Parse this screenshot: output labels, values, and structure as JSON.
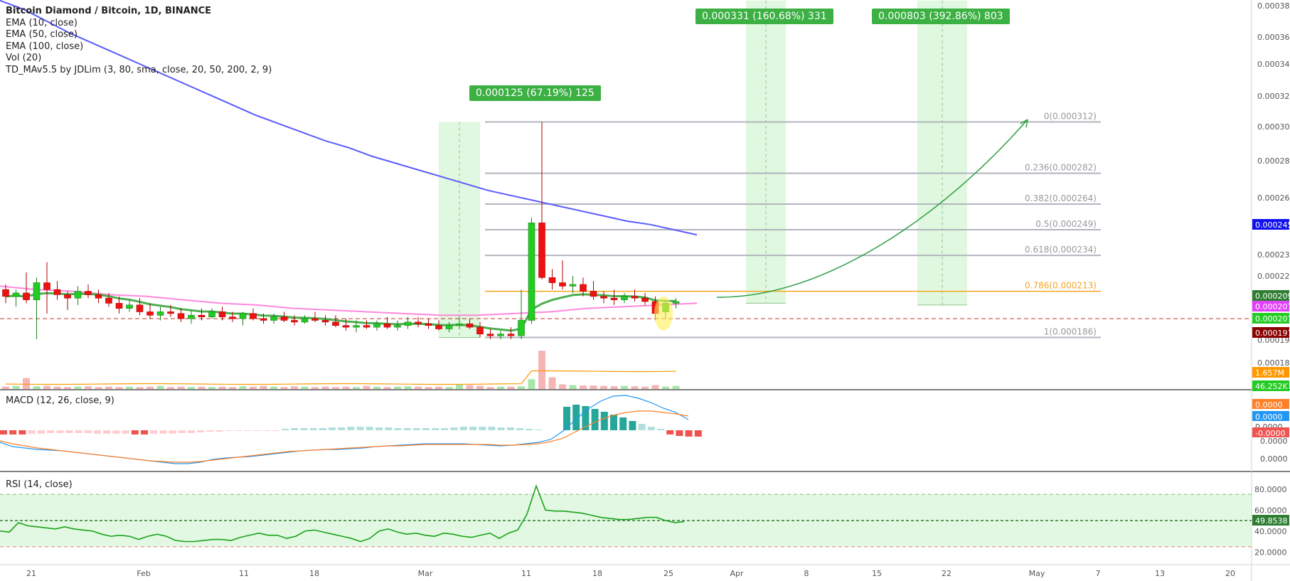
{
  "header": {
    "symbol_line": "Bitcoin Diamond / Bitcoin, 1D, BINANCE",
    "indicators": [
      "EMA (10, close)",
      "EMA (50, close)",
      "EMA (100, close)",
      "Vol (20)",
      "TD_MAv5.5 by JDLim (3, 80, sma, close, 20, 50, 200, 2, 9)"
    ]
  },
  "panes": {
    "macd_label": "MACD (12, 26, close, 9)",
    "rsi_label": "RSI (14, close)"
  },
  "colors": {
    "up": "#22cc22",
    "down": "#ee1111",
    "ema_long": "#5b5bff",
    "ema_mid": "#ff88dd",
    "ema_short": "#4caf50",
    "fib": "#b2b5be",
    "fib_786": "#f5a623",
    "range_fill": "#dcf7dc",
    "rsi": "#1aa31a",
    "macd": "#2196f3",
    "signal": "#ff7f27",
    "arrow": "#2f9e44"
  },
  "chart_data": {
    "type": "candlestick",
    "timeframe": "1D",
    "x_axis": {
      "ticks": [
        "21",
        "Feb",
        "11",
        "18",
        "Mar",
        "11",
        "18",
        "25",
        "Apr",
        "8",
        "15",
        "22",
        "May",
        "7",
        "13",
        "20"
      ]
    },
    "price_axis": {
      "ticks": [
        "0.000380",
        "0.000360",
        "0.000340",
        "0.000320",
        "0.000300",
        "0.000280",
        "0.000260",
        "0.000230",
        "0.000220",
        "0.000190",
        "0.000180"
      ],
      "current_price_tags": [
        {
          "text": "0.000245",
          "color": "#1111ee"
        },
        {
          "text": "0.000209",
          "color": "#2e7d32"
        },
        {
          "text": "0.000207",
          "color": "#e040fb"
        },
        {
          "text": "0.000207",
          "color": "#22cc22"
        },
        {
          "text": "0.000197",
          "color": "#8b0000"
        },
        {
          "text": "1.657M",
          "color": "#ff9800"
        },
        {
          "text": "46.252K",
          "color": "#22cc22"
        }
      ]
    },
    "fib_levels": [
      {
        "label": "0(0.000312)",
        "price": 0.000312
      },
      {
        "label": "0.236(0.000282)",
        "price": 0.000282
      },
      {
        "label": "0.382(0.000264)",
        "price": 0.000264
      },
      {
        "label": "0.5(0.000249)",
        "price": 0.000249
      },
      {
        "label": "0.618(0.000234)",
        "price": 0.000234
      },
      {
        "label": "0.786(0.000213)",
        "price": 0.000213
      },
      {
        "label": "1(0.000186)",
        "price": 0.000186
      }
    ],
    "range_measures": [
      {
        "text": "0.000125 (67.19%) 125"
      },
      {
        "text": "0.000331 (160.68%) 331"
      },
      {
        "text": "0.000803 (392.86%) 803"
      }
    ],
    "candles": [
      {
        "o": 0.000214,
        "h": 0.000217,
        "l": 0.000206,
        "c": 0.00021
      },
      {
        "o": 0.00021,
        "h": 0.000214,
        "l": 0.000204,
        "c": 0.000212
      },
      {
        "o": 0.000212,
        "h": 0.000224,
        "l": 0.000206,
        "c": 0.000208
      },
      {
        "o": 0.000208,
        "h": 0.000221,
        "l": 0.000185,
        "c": 0.000218
      },
      {
        "o": 0.000218,
        "h": 0.00023,
        "l": 0.0002,
        "c": 0.000214
      },
      {
        "o": 0.000214,
        "h": 0.000219,
        "l": 0.000208,
        "c": 0.000211
      },
      {
        "o": 0.000211,
        "h": 0.000213,
        "l": 0.000202,
        "c": 0.000209
      },
      {
        "o": 0.000209,
        "h": 0.000216,
        "l": 0.000205,
        "c": 0.000213
      },
      {
        "o": 0.000213,
        "h": 0.000217,
        "l": 0.000209,
        "c": 0.000211
      },
      {
        "o": 0.000211,
        "h": 0.000214,
        "l": 0.000206,
        "c": 0.000209
      },
      {
        "o": 0.000209,
        "h": 0.000212,
        "l": 0.000204,
        "c": 0.000206
      },
      {
        "o": 0.000206,
        "h": 0.00021,
        "l": 0.0002,
        "c": 0.000203
      },
      {
        "o": 0.000203,
        "h": 0.000208,
        "l": 0.000201,
        "c": 0.000205
      },
      {
        "o": 0.000205,
        "h": 0.000209,
        "l": 0.000199,
        "c": 0.000201
      },
      {
        "o": 0.000201,
        "h": 0.000206,
        "l": 0.000197,
        "c": 0.000199
      },
      {
        "o": 0.000199,
        "h": 0.000204,
        "l": 0.000196,
        "c": 0.000201
      },
      {
        "o": 0.000201,
        "h": 0.000205,
        "l": 0.000198,
        "c": 0.0002
      },
      {
        "o": 0.0002,
        "h": 0.000203,
        "l": 0.000195,
        "c": 0.000197
      },
      {
        "o": 0.000197,
        "h": 0.000202,
        "l": 0.000194,
        "c": 0.000199
      },
      {
        "o": 0.000199,
        "h": 0.000203,
        "l": 0.000196,
        "c": 0.000198
      },
      {
        "o": 0.000198,
        "h": 0.000203,
        "l": 0.000197,
        "c": 0.000201
      },
      {
        "o": 0.000201,
        "h": 0.000204,
        "l": 0.000196,
        "c": 0.000198
      },
      {
        "o": 0.000198,
        "h": 0.000201,
        "l": 0.000195,
        "c": 0.000197
      },
      {
        "o": 0.000197,
        "h": 0.000201,
        "l": 0.000193,
        "c": 0.0002
      },
      {
        "o": 0.0002,
        "h": 0.000203,
        "l": 0.000196,
        "c": 0.000197
      },
      {
        "o": 0.000197,
        "h": 0.0002,
        "l": 0.000194,
        "c": 0.000196
      },
      {
        "o": 0.000196,
        "h": 0.0002,
        "l": 0.000194,
        "c": 0.000198
      },
      {
        "o": 0.000198,
        "h": 0.000201,
        "l": 0.000195,
        "c": 0.000196
      },
      {
        "o": 0.000196,
        "h": 0.000199,
        "l": 0.000193,
        "c": 0.000195
      },
      {
        "o": 0.000195,
        "h": 0.000199,
        "l": 0.000194,
        "c": 0.000197
      },
      {
        "o": 0.000197,
        "h": 0.000201,
        "l": 0.000195,
        "c": 0.000196
      },
      {
        "o": 0.000196,
        "h": 0.000199,
        "l": 0.000193,
        "c": 0.000195
      },
      {
        "o": 0.000195,
        "h": 0.000199,
        "l": 0.000192,
        "c": 0.000193
      },
      {
        "o": 0.000193,
        "h": 0.000197,
        "l": 0.00019,
        "c": 0.000192
      },
      {
        "o": 0.000192,
        "h": 0.000196,
        "l": 0.000189,
        "c": 0.000193
      },
      {
        "o": 0.000193,
        "h": 0.000196,
        "l": 0.000191,
        "c": 0.000192
      },
      {
        "o": 0.000192,
        "h": 0.000196,
        "l": 0.00019,
        "c": 0.000194
      },
      {
        "o": 0.000194,
        "h": 0.000198,
        "l": 0.000191,
        "c": 0.000192
      },
      {
        "o": 0.000192,
        "h": 0.000196,
        "l": 0.00019,
        "c": 0.000193
      },
      {
        "o": 0.000193,
        "h": 0.000198,
        "l": 0.000191,
        "c": 0.000195
      },
      {
        "o": 0.000195,
        "h": 0.000198,
        "l": 0.000192,
        "c": 0.000194
      },
      {
        "o": 0.000194,
        "h": 0.000197,
        "l": 0.000191,
        "c": 0.000193
      },
      {
        "o": 0.000193,
        "h": 0.000196,
        "l": 0.00019,
        "c": 0.000191
      },
      {
        "o": 0.000191,
        "h": 0.000195,
        "l": 0.000189,
        "c": 0.000193
      },
      {
        "o": 0.000193,
        "h": 0.000198,
        "l": 0.000191,
        "c": 0.000194
      },
      {
        "o": 0.000194,
        "h": 0.000197,
        "l": 0.000191,
        "c": 0.000192
      },
      {
        "o": 0.000192,
        "h": 0.000195,
        "l": 0.000186,
        "c": 0.000188
      },
      {
        "o": 0.000188,
        "h": 0.000191,
        "l": 0.000185,
        "c": 0.000187
      },
      {
        "o": 0.000187,
        "h": 0.00019,
        "l": 0.000185,
        "c": 0.000188
      },
      {
        "o": 0.000188,
        "h": 0.000192,
        "l": 0.000185,
        "c": 0.000187
      },
      {
        "o": 0.000187,
        "h": 0.000214,
        "l": 0.000185,
        "c": 0.000196
      },
      {
        "o": 0.000196,
        "h": 0.000256,
        "l": 0.000194,
        "c": 0.000253
      },
      {
        "o": 0.000253,
        "h": 0.000312,
        "l": 0.00022,
        "c": 0.000221
      },
      {
        "o": 0.000221,
        "h": 0.000226,
        "l": 0.000214,
        "c": 0.000218
      },
      {
        "o": 0.000218,
        "h": 0.000231,
        "l": 0.000214,
        "c": 0.000216
      },
      {
        "o": 0.000216,
        "h": 0.000222,
        "l": 0.000212,
        "c": 0.000217
      },
      {
        "o": 0.000217,
        "h": 0.000221,
        "l": 0.00021,
        "c": 0.000213
      },
      {
        "o": 0.000213,
        "h": 0.000219,
        "l": 0.000208,
        "c": 0.00021
      },
      {
        "o": 0.00021,
        "h": 0.000213,
        "l": 0.000206,
        "c": 0.000209
      },
      {
        "o": 0.000209,
        "h": 0.000214,
        "l": 0.000205,
        "c": 0.000208
      },
      {
        "o": 0.000208,
        "h": 0.000212,
        "l": 0.000206,
        "c": 0.00021
      },
      {
        "o": 0.00021,
        "h": 0.000214,
        "l": 0.000207,
        "c": 0.000209
      },
      {
        "o": 0.000209,
        "h": 0.000212,
        "l": 0.000205,
        "c": 0.000207
      },
      {
        "o": 0.000207,
        "h": 0.00021,
        "l": 0.000196,
        "c": 0.0002
      },
      {
        "o": 0.000201,
        "h": 0.000208,
        "l": 0.000197,
        "c": 0.000206
      },
      {
        "o": 0.000206,
        "h": 0.000209,
        "l": 0.000203,
        "c": 0.000207
      }
    ],
    "ema_long": [
      0.000383,
      0.000378,
      0.000371,
      0.000364,
      0.000358,
      0.000352,
      0.000346,
      0.00034,
      0.000334,
      0.000328,
      0.000322,
      0.000316,
      0.000311,
      0.000306,
      0.000301,
      0.000297,
      0.000292,
      0.000288,
      0.000284,
      0.00028,
      0.000276,
      0.000272,
      0.000269,
      0.000266,
      0.000263,
      0.00026,
      0.000257,
      0.000254,
      0.000252,
      0.000249,
      0.000246
    ],
    "ema_mid": [
      0.000216,
      0.000214,
      0.000213,
      0.000211,
      0.00021,
      0.000208,
      0.000206,
      0.000205,
      0.000203,
      0.000202,
      0.000201,
      0.0002,
      0.000199,
      0.000199,
      0.0002,
      0.000201,
      0.000203,
      0.000204,
      0.000205,
      0.000206
    ],
    "macd_panel": {
      "ticks": [
        "0.0000",
        "0.0000",
        "-0.0000"
      ],
      "tags": [
        "0.0000",
        "0.0000",
        "0.0000",
        "-0.0000"
      ]
    },
    "rsi_panel": {
      "ticks": [
        "80.0000",
        "60.0000",
        "40.0000",
        "20.0000"
      ],
      "current": "49.8538",
      "values": [
        40,
        39,
        48,
        45,
        44,
        43,
        42,
        44,
        42,
        41,
        40,
        37,
        35,
        36,
        35,
        32,
        35,
        37,
        35,
        31,
        30,
        30,
        31,
        32,
        32,
        31,
        34,
        36,
        38,
        36,
        36,
        33,
        35,
        40,
        41,
        39,
        37,
        35,
        33,
        30,
        33,
        40,
        42,
        39,
        37,
        38,
        36,
        35,
        38,
        37,
        35,
        34,
        36,
        38,
        33,
        38,
        41,
        56,
        83,
        60,
        59,
        59,
        58,
        57,
        55,
        53,
        52,
        51,
        51,
        52,
        53,
        53,
        50,
        48,
        49
      ]
    }
  }
}
